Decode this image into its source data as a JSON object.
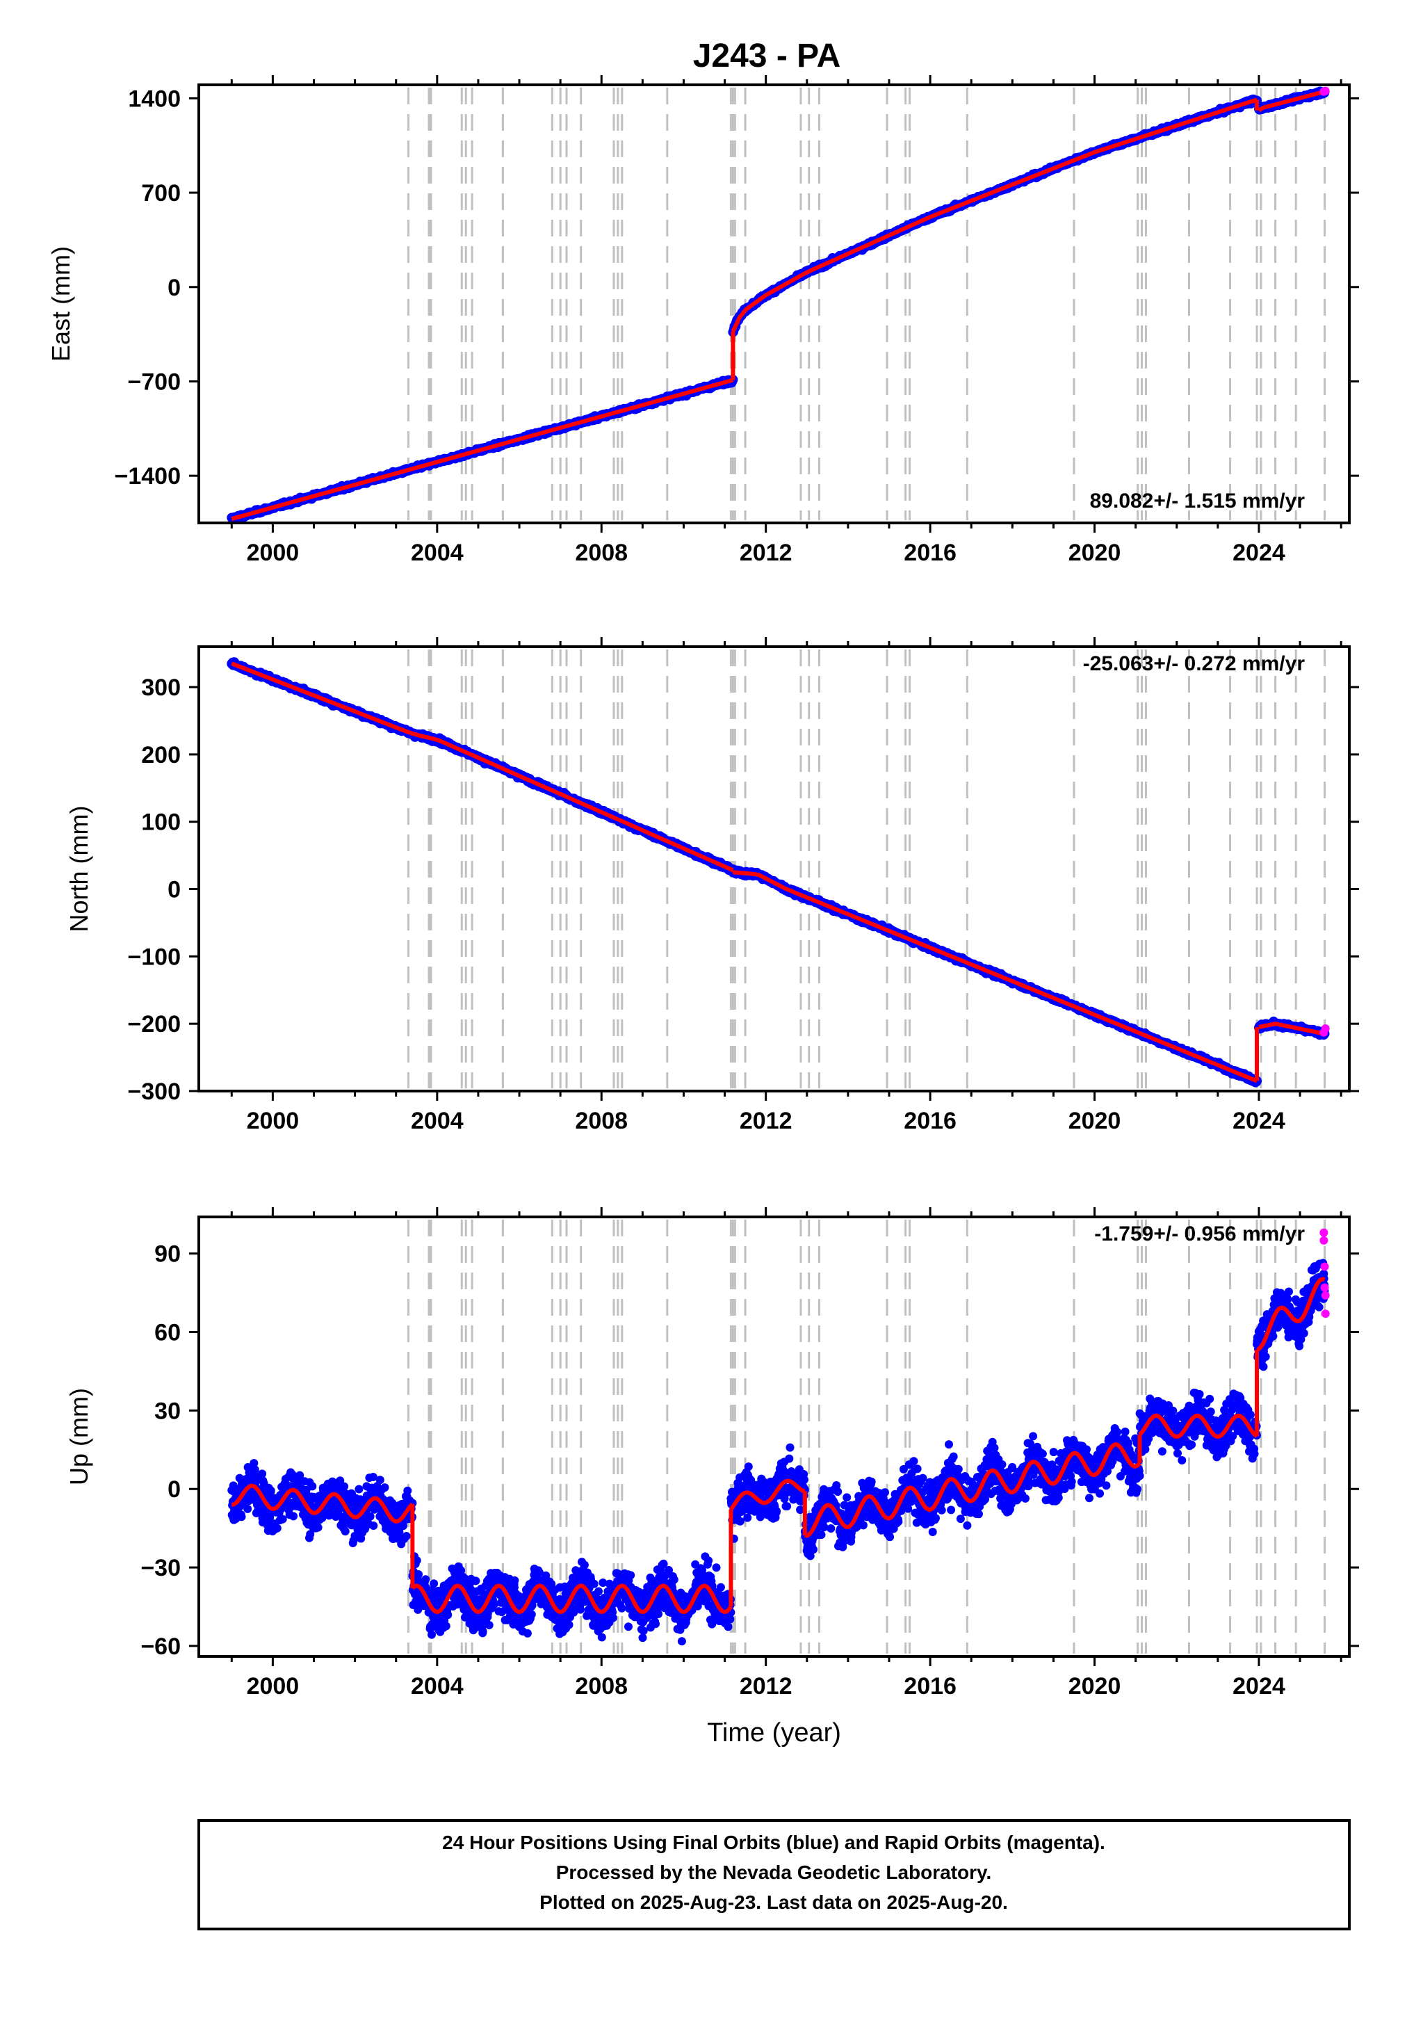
{
  "title": "J243 - PA",
  "footer": {
    "lines": [
      "24 Hour Positions Using Final Orbits (blue) and Rapid Orbits (magenta).",
      "Processed by the Nevada Geodetic Laboratory.",
      "Plotted on 2025-Aug-23. Last data on 2025-Aug-20."
    ]
  },
  "colors": {
    "final": "#0000ff",
    "rapid": "#ff00ff",
    "model": "#ff0000",
    "event_lines": "#c0c0c0"
  },
  "chart_data": [
    {
      "type": "scatter",
      "component": "East",
      "ylabel": "East (mm)",
      "xlabel": "",
      "xlim": [
        1998.2,
        2026.2
      ],
      "ylim": [
        -1750,
        1500
      ],
      "yticks": [
        -1400,
        -700,
        0,
        700,
        1400
      ],
      "ytick_labels": [
        "−1400",
        "−700",
        "0",
        "700",
        "1400"
      ],
      "xticks": [
        2000,
        2004,
        2008,
        2012,
        2016,
        2020,
        2024
      ],
      "xtick_labels": [
        "2000",
        "2004",
        "2008",
        "2012",
        "2016",
        "2020",
        "2024"
      ],
      "rate_label": "89.082+/- 1.515 mm/yr",
      "rate_position": "bottom-right",
      "series": [
        {
          "role": "model",
          "segments": [
            {
              "x": [
                1999.0,
                2011.2
              ],
              "y": [
                -1720,
                -690
              ]
            },
            {
              "x": [
                2011.2,
                2011.3,
                2011.5,
                2012.0,
                2013.0,
                2016.0,
                2020.0,
                2023.95
              ],
              "y": [
                -330,
                -250,
                -170,
                -60,
                110,
                520,
                1000,
                1390
              ]
            },
            {
              "x": [
                2024.0,
                2024.1,
                2025.6
              ],
              "y": [
                1310,
                1330,
                1450
              ]
            }
          ]
        }
      ],
      "rapid_points": [
        {
          "x": 2025.58,
          "y": 1450
        },
        {
          "x": 2025.62,
          "y": 1455
        }
      ]
    },
    {
      "type": "scatter",
      "component": "North",
      "ylabel": "North (mm)",
      "xlabel": "",
      "xlim": [
        1998.2,
        2026.2
      ],
      "ylim": [
        -300,
        360
      ],
      "yticks": [
        -300,
        -200,
        -100,
        0,
        100,
        200,
        300
      ],
      "ytick_labels": [
        "−300",
        "−200",
        "−100",
        "0",
        "100",
        "200",
        "300"
      ],
      "xticks": [
        2000,
        2004,
        2008,
        2012,
        2016,
        2020,
        2024
      ],
      "xtick_labels": [
        "2000",
        "2004",
        "2008",
        "2012",
        "2016",
        "2020",
        "2024"
      ],
      "rate_label": "-25.063+/- 0.272 mm/yr",
      "rate_position": "top-right",
      "series": [
        {
          "role": "model",
          "segments": [
            {
              "x": [
                1999.0,
                2003.3,
                2003.5,
                2004.0,
                2011.2
              ],
              "y": [
                335,
                233,
                229,
                222,
                28
              ]
            },
            {
              "x": [
                2011.2,
                2011.8,
                2012.5,
                2023.95
              ],
              "y": [
                25,
                22,
                0,
                -285
              ]
            },
            {
              "x": [
                2024.0,
                2024.4,
                2025.6
              ],
              "y": [
                -205,
                -200,
                -215
              ]
            }
          ]
        }
      ],
      "rapid_points": [
        {
          "x": 2025.58,
          "y": -213
        },
        {
          "x": 2025.62,
          "y": -207
        }
      ]
    },
    {
      "type": "scatter",
      "component": "Up",
      "ylabel": "Up (mm)",
      "xlabel": "Time (year)",
      "xlim": [
        1998.2,
        2026.2
      ],
      "ylim": [
        -64,
        104
      ],
      "yticks": [
        -60,
        -30,
        0,
        30,
        60,
        90
      ],
      "ytick_labels": [
        "−60",
        "−30",
        "0",
        "30",
        "60",
        "90"
      ],
      "xticks": [
        2000,
        2004,
        2008,
        2012,
        2016,
        2020,
        2024
      ],
      "xtick_labels": [
        "2000",
        "2004",
        "2008",
        "2012",
        "2016",
        "2020",
        "2024"
      ],
      "rate_label": "-1.759+/- 0.956 mm/yr",
      "rate_position": "top-right",
      "noise_std_mm": 6,
      "series": [
        {
          "role": "model",
          "segments": [
            {
              "x": [
                1999.0,
                2003.4
              ],
              "y": [
                -2,
                -9
              ],
              "seasonal_amp": 4
            },
            {
              "x": [
                2003.4,
                2011.15
              ],
              "y": [
                -42,
                -42
              ],
              "seasonal_amp": 5
            },
            {
              "x": [
                2011.15,
                2012.95
              ],
              "y": [
                -6,
                2
              ],
              "seasonal_amp": 3
            },
            {
              "x": [
                2012.95,
                2021.1
              ],
              "y": [
                -13,
                14
              ],
              "seasonal_amp": 5
            },
            {
              "x": [
                2021.1,
                2023.95
              ],
              "y": [
                24,
                24
              ],
              "seasonal_amp": 4
            },
            {
              "x": [
                2023.95,
                2025.6
              ],
              "y": [
                58,
                76
              ],
              "seasonal_amp": 5
            }
          ]
        }
      ],
      "rapid_points": [
        {
          "x": 2025.58,
          "y": 98
        },
        {
          "x": 2025.58,
          "y": 95
        },
        {
          "x": 2025.6,
          "y": 85
        },
        {
          "x": 2025.6,
          "y": 77
        },
        {
          "x": 2025.62,
          "y": 74
        },
        {
          "x": 2025.62,
          "y": 67
        }
      ]
    }
  ],
  "event_lines": [
    2003.3,
    2003.8,
    2003.85,
    2004.6,
    2004.7,
    2004.85,
    2005.6,
    2006.8,
    2007.0,
    2007.15,
    2007.5,
    2008.3,
    2008.4,
    2008.5,
    2009.6,
    2011.15,
    2011.2,
    2011.25,
    2011.5,
    2012.85,
    2013.05,
    2013.3,
    2014.95,
    2015.4,
    2015.5,
    2016.9,
    2019.5,
    2021.05,
    2021.15,
    2021.25,
    2022.3,
    2023.3,
    2023.95,
    2024.05,
    2024.4,
    2024.9,
    2025.6
  ]
}
